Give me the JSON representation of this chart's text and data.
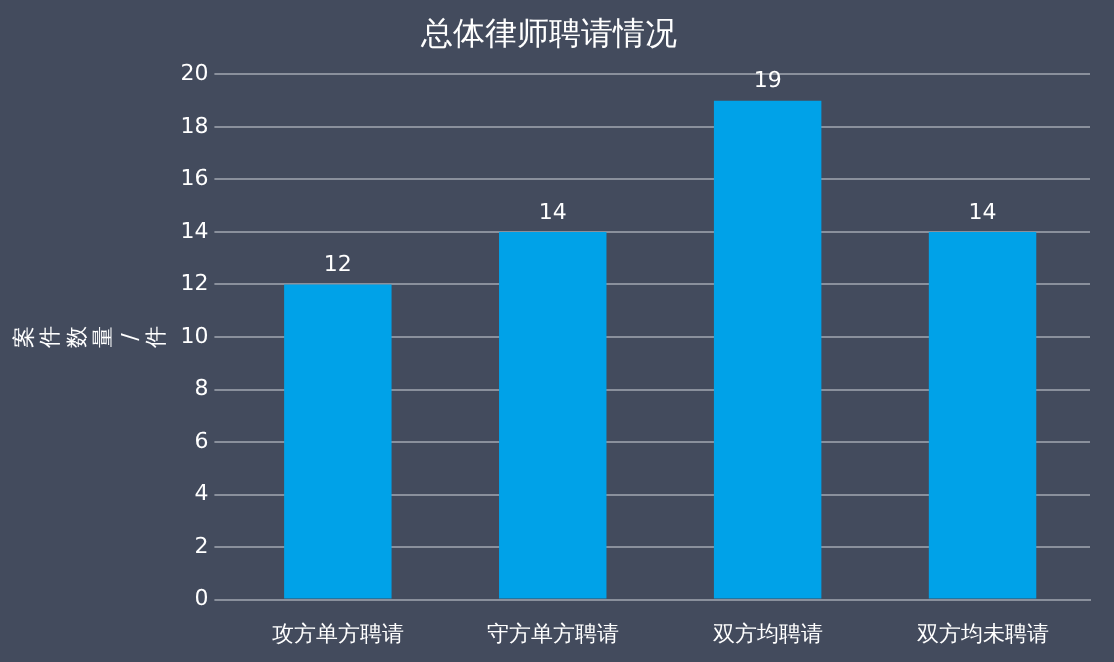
{
  "chart_data": {
    "type": "bar",
    "title": "总体律师聘请情况",
    "ylabel": "案件数量/件",
    "categories": [
      "攻方单方聘请",
      "守方单方聘请",
      "双方均聘请",
      "双方均未聘请"
    ],
    "values": [
      12,
      14,
      19,
      14
    ],
    "color": "#00a2e8",
    "ylim": [
      0,
      20
    ],
    "yticks": [
      0,
      2,
      4,
      6,
      8,
      10,
      12,
      14,
      16,
      18,
      20
    ],
    "grid": "y",
    "data_labels": true,
    "legend": false
  }
}
